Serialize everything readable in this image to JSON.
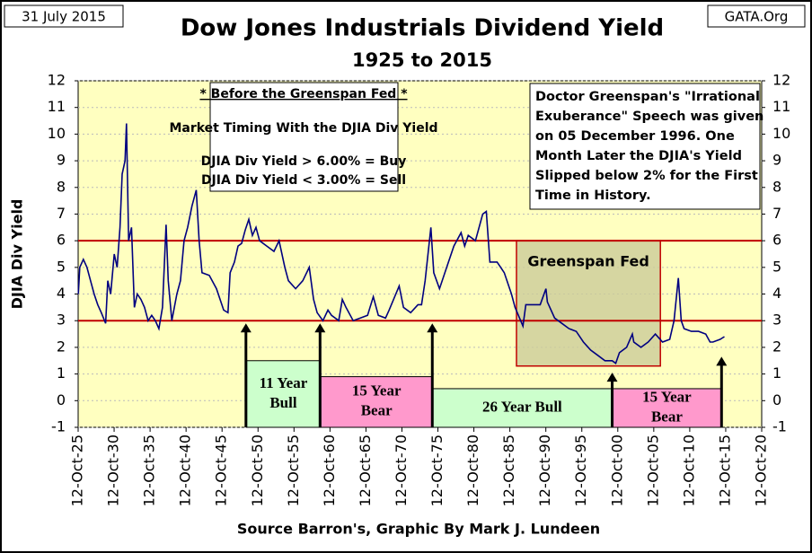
{
  "chart_data": {
    "type": "line",
    "title": "Dow Jones Industrials Dividend Yield",
    "subtitle": "1925 to 2015",
    "date_stamp": "31 July 2015",
    "site": "GATA.Org",
    "y_label": "DJIA Div Yield",
    "footer": "Source Barron's, Graphic By Mark J. Lundeen",
    "color": "#000080",
    "xlim": [
      1925.78,
      2020.78
    ],
    "ylim": [
      -1,
      12
    ],
    "yticks": [
      -1,
      0,
      1,
      2,
      3,
      4,
      5,
      6,
      7,
      8,
      9,
      10,
      11,
      12
    ],
    "xticks": [
      {
        "value": 1925.78,
        "label": "12-Oct-25"
      },
      {
        "value": 1930.78,
        "label": "12-Oct-30"
      },
      {
        "value": 1935.78,
        "label": "12-Oct-35"
      },
      {
        "value": 1940.78,
        "label": "12-Oct-40"
      },
      {
        "value": 1945.78,
        "label": "12-Oct-45"
      },
      {
        "value": 1950.78,
        "label": "12-Oct-50"
      },
      {
        "value": 1955.78,
        "label": "12-Oct-55"
      },
      {
        "value": 1960.78,
        "label": "12-Oct-60"
      },
      {
        "value": 1965.78,
        "label": "12-Oct-65"
      },
      {
        "value": 1970.78,
        "label": "12-Oct-70"
      },
      {
        "value": 1975.78,
        "label": "12-Oct-75"
      },
      {
        "value": 1980.78,
        "label": "12-Oct-80"
      },
      {
        "value": 1985.78,
        "label": "12-Oct-85"
      },
      {
        "value": 1990.78,
        "label": "12-Oct-90"
      },
      {
        "value": 1995.78,
        "label": "12-Oct-95"
      },
      {
        "value": 2000.78,
        "label": "12-Oct-00"
      },
      {
        "value": 2005.78,
        "label": "12-Oct-05"
      },
      {
        "value": 2010.78,
        "label": "12-Oct-10"
      },
      {
        "value": 2015.78,
        "label": "12-Oct-15"
      },
      {
        "value": 2020.78,
        "label": "12-Oct-20"
      }
    ],
    "grid": true,
    "x": [
      1925.8,
      1926,
      1926.5,
      1927,
      1927.5,
      1928,
      1928.5,
      1929,
      1929.6,
      1929.9,
      1930.3,
      1930.8,
      1931.2,
      1931.6,
      1931.9,
      1932.3,
      1932.5,
      1932.8,
      1933.2,
      1933.6,
      1934,
      1934.5,
      1935,
      1935.5,
      1936,
      1936.5,
      1937,
      1937.5,
      1938,
      1938.3,
      1938.8,
      1939.5,
      1940,
      1940.5,
      1941,
      1941.6,
      1942.2,
      1942.6,
      1943,
      1944,
      1945,
      1946,
      1946.6,
      1946.9,
      1947.5,
      1948,
      1948.5,
      1949,
      1949.5,
      1950,
      1950.5,
      1951,
      1952,
      1953,
      1953.7,
      1954.5,
      1955,
      1956,
      1957,
      1957.9,
      1958.5,
      1959,
      1959.8,
      1960.5,
      1961,
      1962,
      1962.5,
      1963,
      1964,
      1965,
      1966,
      1966.8,
      1967.5,
      1968.5,
      1969,
      1970.4,
      1971,
      1972,
      1973,
      1973.5,
      1974,
      1974.8,
      1975.2,
      1976,
      1977,
      1978,
      1979,
      1979.5,
      1980,
      1981,
      1982,
      1982.5,
      1983,
      1984,
      1984.5,
      1985,
      1986,
      1986.5,
      1987.6,
      1988,
      1989,
      1990,
      1990.8,
      1991,
      1992,
      1993,
      1994,
      1995,
      1996,
      1997,
      1998,
      1999,
      2000,
      2000.5,
      2001,
      2002,
      2002.8,
      2003,
      2004,
      2005,
      2006,
      2007,
      2008,
      2008.6,
      2009.2,
      2009.6,
      2010,
      2011,
      2012,
      2013,
      2013.6,
      2014,
      2015,
      2015.6
    ],
    "values": [
      4.0,
      5.0,
      5.3,
      5.0,
      4.5,
      4.0,
      3.6,
      3.3,
      2.9,
      4.5,
      4.0,
      5.5,
      5.0,
      6.5,
      8.5,
      9.0,
      10.4,
      6.0,
      6.5,
      3.5,
      4.0,
      3.8,
      3.5,
      3.0,
      3.2,
      3.0,
      2.7,
      3.5,
      6.6,
      4.5,
      3.0,
      4.0,
      4.5,
      6.0,
      6.5,
      7.3,
      7.9,
      6.0,
      4.8,
      4.7,
      4.2,
      3.4,
      3.3,
      4.8,
      5.2,
      5.8,
      5.9,
      6.4,
      6.8,
      6.2,
      6.5,
      6.0,
      5.8,
      5.6,
      6.0,
      5.0,
      4.5,
      4.2,
      4.5,
      5.0,
      3.8,
      3.3,
      3.0,
      3.4,
      3.2,
      3.0,
      3.8,
      3.5,
      3.0,
      3.1,
      3.2,
      3.9,
      3.2,
      3.1,
      3.4,
      4.3,
      3.5,
      3.3,
      3.6,
      3.6,
      4.5,
      6.5,
      4.8,
      4.2,
      5.0,
      5.8,
      6.3,
      5.8,
      6.2,
      6.0,
      7.0,
      7.1,
      5.2,
      5.2,
      5.0,
      4.8,
      4.0,
      3.5,
      2.8,
      3.6,
      3.6,
      3.6,
      4.2,
      3.7,
      3.1,
      2.9,
      2.7,
      2.6,
      2.2,
      1.9,
      1.7,
      1.5,
      1.5,
      1.4,
      1.8,
      2.0,
      2.5,
      2.2,
      2.0,
      2.2,
      2.5,
      2.2,
      2.3,
      3.0,
      4.6,
      3.0,
      2.7,
      2.6,
      2.6,
      2.5,
      2.2,
      2.2,
      2.3,
      2.4
    ],
    "hlines": [
      6,
      3
    ],
    "hline_color": "#c00000",
    "rule_box": [
      "* Before the Greenspan Fed *",
      "Market Timing With the DJIA Div Yield",
      "DJIA Div Yield > 6.00% = Buy",
      "DJIA Div Yield < 3.00% = Sell"
    ],
    "speech_box": [
      "Doctor Greenspan's \"Irrational",
      "Exuberance\" Speech was given",
      "on 05 December 1996.  One",
      "Month Later the DJIA's Yield",
      "Slipped below 2% for the First",
      "Time in History."
    ],
    "region": {
      "label": "Greenspan Fed",
      "x": [
        1986.7,
        2006.7
      ],
      "y": [
        1.3,
        6
      ]
    },
    "eras": [
      {
        "lines": [
          "11 Year",
          "Bull"
        ],
        "x": [
          1949.2,
          1959.4
        ],
        "top": 1.5,
        "color": "#ccffcc"
      },
      {
        "lines": [
          "15 Year",
          "Bear"
        ],
        "x": [
          1959.5,
          1975.0
        ],
        "top": 0.9,
        "color": "#ff99cc"
      },
      {
        "lines": [
          "26 Year Bull"
        ],
        "x": [
          1975.0,
          2000.0
        ],
        "top": 0.45,
        "color": "#ccffcc"
      },
      {
        "lines": [
          "15 Year",
          "Bear"
        ],
        "x": [
          2000.0,
          2015.2
        ],
        "top": 0.45,
        "color": "#ff99cc"
      }
    ],
    "arrows": [
      {
        "x": 1949.1,
        "y": 2.9
      },
      {
        "x": 1959.4,
        "y": 2.9
      },
      {
        "x": 1975.0,
        "y": 2.9
      },
      {
        "x": 2000.0,
        "y": 1.05
      },
      {
        "x": 2015.2,
        "y": 1.65
      }
    ]
  }
}
